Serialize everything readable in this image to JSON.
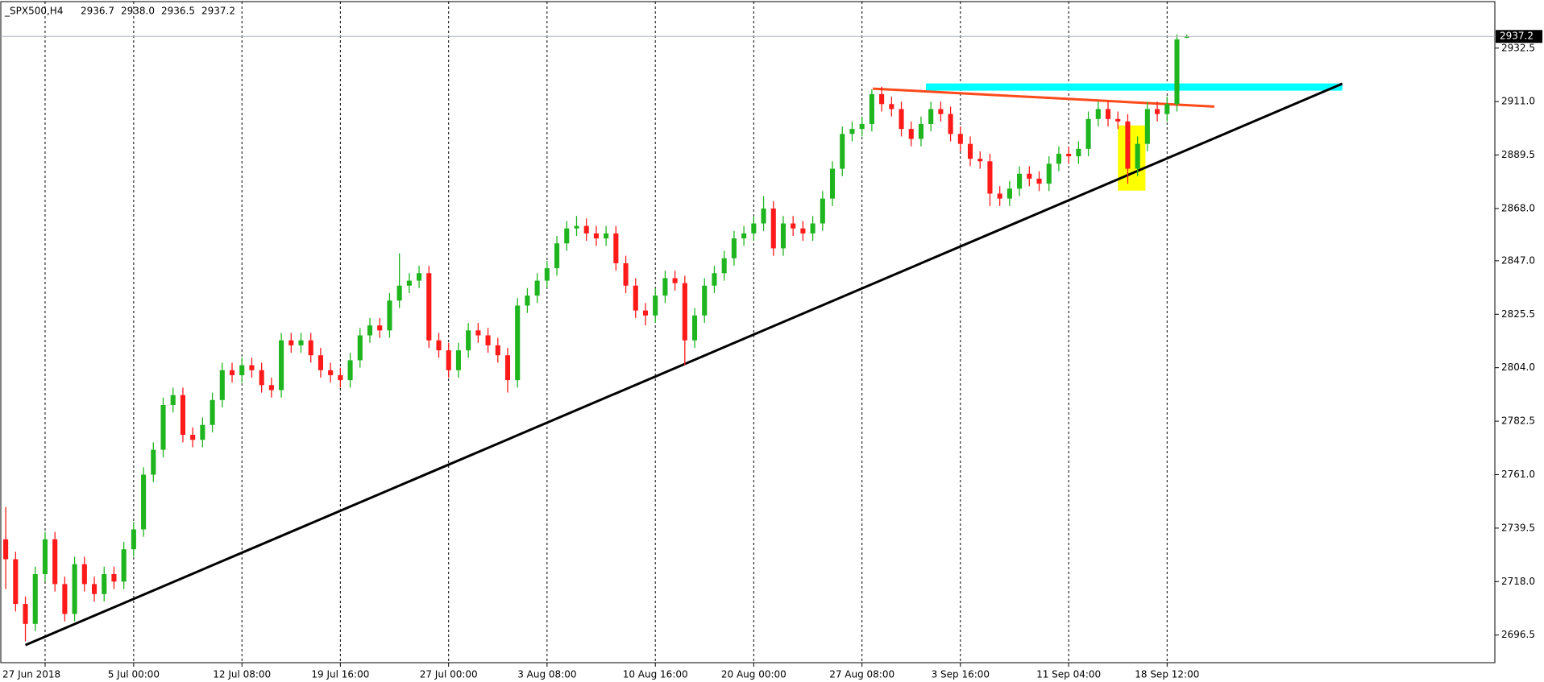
{
  "chart_data": {
    "type": "candlestick",
    "symbol": "_SPX500,H4",
    "ohlc_labels": [
      "2936.7",
      "2938.0",
      "2936.5",
      "2937.2"
    ],
    "colors": {
      "up": "#1fb51f",
      "down": "#ff1a1a",
      "price_line": "#a9b0b8"
    },
    "open": [
      2735,
      2727,
      2709,
      2701,
      2721,
      2735,
      2717,
      2705,
      2725,
      2717,
      2713,
      2721,
      2718,
      2731,
      2739,
      2761,
      2771,
      2789,
      2793,
      2777,
      2775,
      2781,
      2791,
      2803,
      2801,
      2805,
      2803,
      2797,
      2795,
      2815,
      2813,
      2815,
      2809,
      2803,
      2801,
      2799,
      2807,
      2817,
      2821,
      2819,
      2831,
      2837,
      2839,
      2842,
      2815,
      2811,
      2803,
      2811,
      2819,
      2817,
      2813,
      2809,
      2799,
      2829,
      2833,
      2839,
      2844,
      2854,
      2860,
      2861,
      2858,
      2856,
      2858,
      2846,
      2837,
      2827,
      2825,
      2833,
      2840,
      2838,
      2815,
      2825,
      2837,
      2842,
      2848,
      2856,
      2858,
      2862,
      2868,
      2852,
      2862,
      2860,
      2858,
      2862,
      2872,
      2884,
      2898,
      2900,
      2902,
      2914,
      2910,
      2908,
      2900,
      2896,
      2902,
      2908,
      2906,
      2898,
      2894,
      2888,
      2887,
      2874,
      2872,
      2876,
      2882,
      2880,
      2878,
      2886,
      2890,
      2889,
      2892,
      2904,
      2908,
      2904,
      2903,
      2884,
      2894,
      2908,
      2906,
      2910,
      2936.7
    ],
    "high": [
      2748,
      2730,
      2712,
      2724,
      2738,
      2738,
      2720,
      2728,
      2728,
      2720,
      2724,
      2724,
      2734,
      2742,
      2764,
      2774,
      2792,
      2796,
      2796,
      2780,
      2784,
      2794,
      2806,
      2806,
      2808,
      2808,
      2806,
      2800,
      2818,
      2818,
      2818,
      2818,
      2812,
      2806,
      2804,
      2810,
      2820,
      2824,
      2824,
      2834,
      2850,
      2842,
      2845,
      2845,
      2818,
      2814,
      2814,
      2822,
      2822,
      2820,
      2816,
      2812,
      2832,
      2836,
      2842,
      2847,
      2857,
      2863,
      2865,
      2864,
      2861,
      2861,
      2861,
      2849,
      2840,
      2830,
      2836,
      2843,
      2843,
      2841,
      2828,
      2840,
      2845,
      2851,
      2859,
      2861,
      2865,
      2873,
      2871,
      2865,
      2865,
      2863,
      2865,
      2875,
      2887,
      2901,
      2903,
      2905,
      2916,
      2917,
      2913,
      2911,
      2903,
      2905,
      2911,
      2911,
      2909,
      2901,
      2897,
      2891,
      2890,
      2877,
      2879,
      2885,
      2885,
      2883,
      2889,
      2893,
      2893,
      2895,
      2907,
      2911,
      2911,
      2907,
      2906,
      2897,
      2911,
      2911,
      2913,
      2938,
      2938
    ],
    "low": [
      2715,
      2706,
      2694,
      2698,
      2718,
      2714,
      2702,
      2702,
      2714,
      2710,
      2710,
      2715,
      2715,
      2728,
      2736,
      2758,
      2768,
      2786,
      2774,
      2772,
      2772,
      2778,
      2788,
      2798,
      2798,
      2800,
      2794,
      2792,
      2792,
      2810,
      2810,
      2806,
      2800,
      2798,
      2796,
      2796,
      2804,
      2814,
      2816,
      2816,
      2828,
      2834,
      2836,
      2812,
      2808,
      2800,
      2800,
      2808,
      2814,
      2810,
      2806,
      2794,
      2796,
      2826,
      2830,
      2836,
      2841,
      2851,
      2857,
      2855,
      2853,
      2853,
      2843,
      2834,
      2824,
      2821,
      2822,
      2830,
      2835,
      2805,
      2812,
      2822,
      2834,
      2839,
      2845,
      2853,
      2855,
      2859,
      2849,
      2849,
      2857,
      2855,
      2855,
      2859,
      2869,
      2881,
      2895,
      2897,
      2899,
      2907,
      2905,
      2897,
      2893,
      2893,
      2899,
      2903,
      2895,
      2891,
      2885,
      2884,
      2869,
      2869,
      2869,
      2873,
      2877,
      2875,
      2875,
      2883,
      2886,
      2886,
      2889,
      2901,
      2901,
      2900,
      2878,
      2881,
      2891,
      2903,
      2903,
      2907,
      2936.5
    ],
    "close": [
      2727,
      2709,
      2701,
      2721,
      2735,
      2717,
      2705,
      2725,
      2717,
      2713,
      2721,
      2718,
      2731,
      2739,
      2761,
      2771,
      2789,
      2793,
      2777,
      2775,
      2781,
      2791,
      2803,
      2801,
      2805,
      2803,
      2797,
      2795,
      2815,
      2813,
      2815,
      2809,
      2803,
      2801,
      2799,
      2807,
      2817,
      2821,
      2819,
      2831,
      2837,
      2839,
      2842,
      2815,
      2811,
      2803,
      2811,
      2819,
      2817,
      2813,
      2809,
      2799,
      2829,
      2833,
      2839,
      2844,
      2854,
      2860,
      2861,
      2858,
      2856,
      2858,
      2846,
      2837,
      2827,
      2825,
      2833,
      2840,
      2838,
      2815,
      2825,
      2837,
      2842,
      2848,
      2856,
      2858,
      2862,
      2868,
      2852,
      2862,
      2860,
      2858,
      2862,
      2872,
      2884,
      2898,
      2900,
      2902,
      2914,
      2910,
      2908,
      2900,
      2896,
      2902,
      2908,
      2906,
      2898,
      2894,
      2888,
      2887,
      2874,
      2872,
      2876,
      2882,
      2880,
      2878,
      2886,
      2890,
      2889,
      2892,
      2904,
      2908,
      2904,
      2903,
      2884,
      2894,
      2908,
      2906,
      2910,
      2936,
      2937.2
    ],
    "xlim": [
      -0.5,
      151.3
    ],
    "xticks": [
      {
        "value": 4,
        "label": "27 Jun 2018"
      },
      {
        "value": 13,
        "label": "5 Jul 00:00"
      },
      {
        "value": 24,
        "label": "12 Jul 08:00"
      },
      {
        "value": 34,
        "label": "19 Jul 16:00"
      },
      {
        "value": 45,
        "label": "27 Jul 00:00"
      },
      {
        "value": 55,
        "label": "3 Aug 08:00"
      },
      {
        "value": 66,
        "label": "10 Aug 16:00"
      },
      {
        "value": 76,
        "label": "20 Aug 00:00"
      },
      {
        "value": 87,
        "label": "27 Aug 08:00"
      },
      {
        "value": 97,
        "label": "3 Sep 16:00"
      },
      {
        "value": 108,
        "label": "11 Sep 04:00"
      },
      {
        "value": 118,
        "label": "18 Sep 12:00"
      }
    ],
    "ylim": [
      2685.4,
      2951.2
    ],
    "yticks": [
      2696.5,
      {
        "value": 2718,
        "label": "2718.0"
      },
      2739.5,
      {
        "value": 2761,
        "label": "2761.0"
      },
      2782.5,
      {
        "value": 2804,
        "label": "2804.0"
      },
      2825.5,
      {
        "value": 2847,
        "label": "2847.0"
      },
      {
        "value": 2868,
        "label": "2868.0"
      },
      2889.5,
      {
        "value": 2911,
        "label": "2911.0"
      },
      2932.5
    ],
    "grid": true,
    "drawings": [
      {
        "type": "rectangle",
        "color": "#ffff00",
        "x": [
          113,
          115.8
        ],
        "y": [
          2875.2,
          2901.4
        ]
      },
      {
        "type": "rectangle",
        "color": "#00ffff",
        "x": [
          93.5,
          135.8
        ],
        "y": [
          2915.4,
          2918.3
        ]
      },
      {
        "type": "trendline",
        "color": "#000000",
        "x": [
          2,
          135.8
        ],
        "y": [
          2692.5,
          2918.2
        ]
      },
      {
        "type": "trendline",
        "color": "#ff4a1a",
        "x": [
          88.1,
          122.8
        ],
        "y": [
          2916.2,
          2909
        ]
      }
    ]
  }
}
